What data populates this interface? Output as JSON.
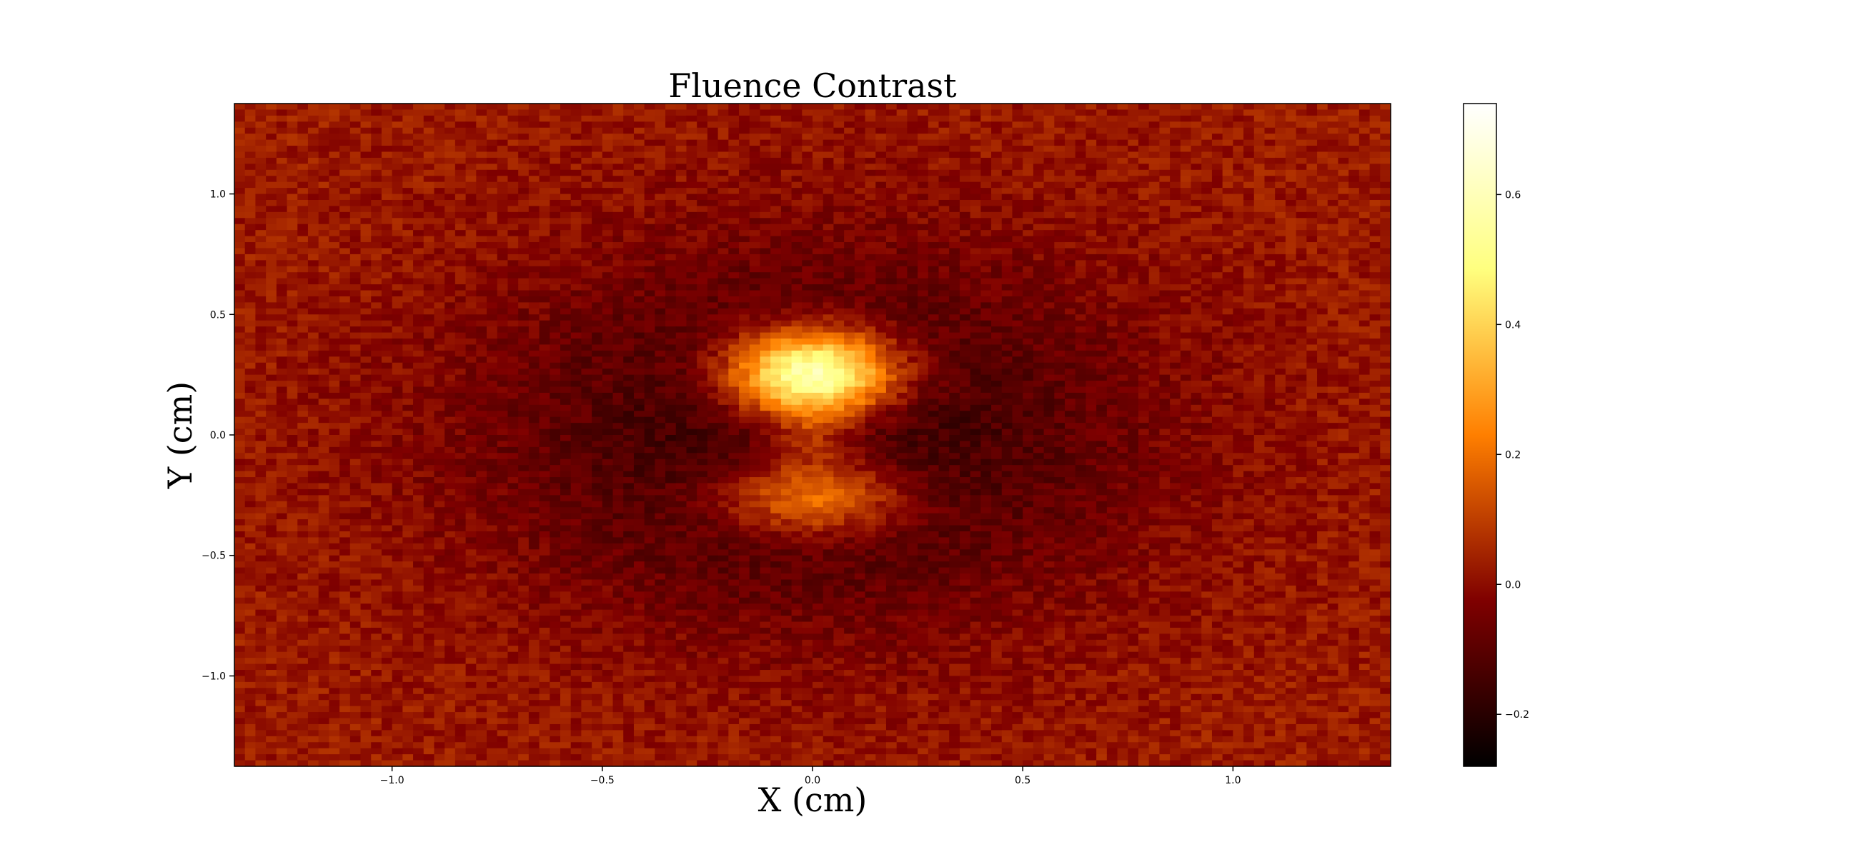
{
  "chart_data": {
    "type": "heatmap",
    "title": "Fluence Contrast",
    "xlabel": "X (cm)",
    "ylabel": "Y (cm)",
    "xlim": [
      -1.375,
      1.375
    ],
    "ylim": [
      -1.375,
      1.375
    ],
    "xticks": [
      -1.0,
      -0.5,
      0.0,
      0.5,
      1.0
    ],
    "xtick_labels": [
      "−1.0",
      "−0.5",
      "0.0",
      "0.5",
      "1.0"
    ],
    "yticks": [
      -1.0,
      -0.5,
      0.0,
      0.5,
      1.0
    ],
    "ytick_labels": [
      "−1.0",
      "−0.5",
      "0.0",
      "0.5",
      "1.0"
    ],
    "grid": false,
    "colormap": "afmhot",
    "colorbar": {
      "range": [
        -0.28,
        0.74
      ],
      "ticks": [
        -0.2,
        0.0,
        0.2,
        0.4,
        0.6
      ],
      "tick_labels": [
        "−0.2",
        "0.0",
        "0.2",
        "0.4",
        "0.6"
      ]
    },
    "grid_size": [
      110,
      110
    ],
    "background_level": 0.03,
    "noise_amplitude": 0.05,
    "features": [
      {
        "kind": "peak",
        "x": 0.0,
        "y": 0.25,
        "sx": 0.14,
        "sy": 0.13,
        "amplitude": 0.74
      },
      {
        "kind": "peak",
        "x": 0.0,
        "y": -0.25,
        "sx": 0.16,
        "sy": 0.12,
        "amplitude": 0.35
      },
      {
        "kind": "peak",
        "x": 0.0,
        "y": 0.0,
        "sx": 0.07,
        "sy": 0.1,
        "amplitude": 0.12
      },
      {
        "kind": "depression",
        "x": 0.0,
        "y": 0.0,
        "sx": 0.55,
        "sy": 0.55,
        "amplitude": -0.22
      }
    ]
  }
}
